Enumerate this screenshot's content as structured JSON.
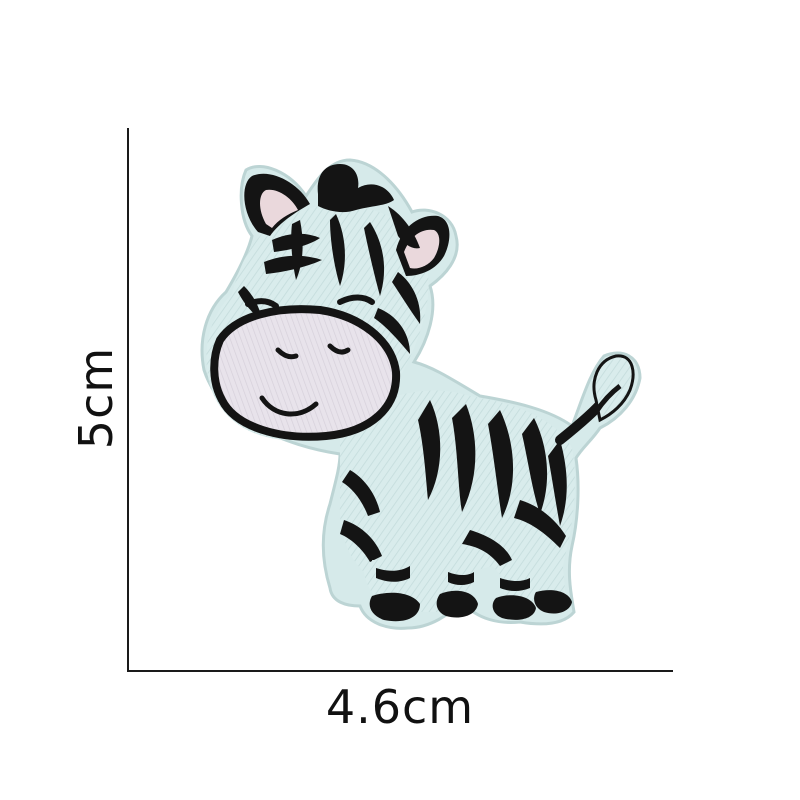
{
  "dimensions": {
    "width_label": "4.6cm",
    "height_label": "5cm"
  },
  "patch": {
    "subject": "zebra-embroidered-patch",
    "colors": {
      "body": "#d9ecec",
      "stripes": "#141414",
      "muzzle": "#e7e2ea",
      "inner_ear": "#ead8dc",
      "border": "#c5dcdc"
    }
  }
}
